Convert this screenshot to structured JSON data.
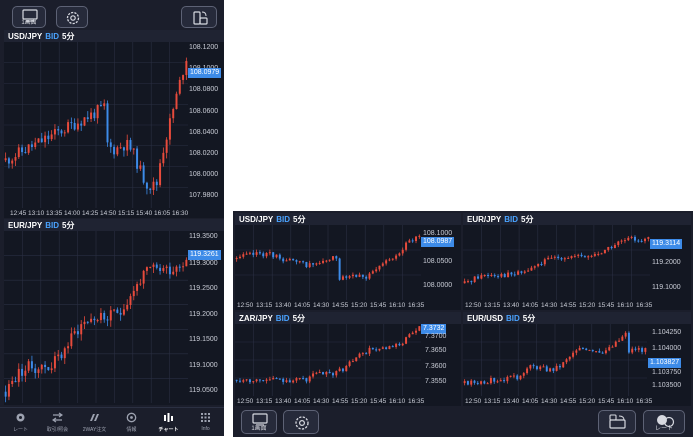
{
  "colors": {
    "up": "#e84b3c",
    "down": "#3d8be8",
    "background": "#131722",
    "accent": "#3d8be8"
  },
  "phone": {
    "toolbar": {
      "screen_button_label": "1画面",
      "settings_icon": "gear-icon",
      "rotate_icon": "rotate-icon"
    },
    "charts": [
      {
        "pair": "USD/JPY",
        "price_type": "BID",
        "interval": "5分",
        "y_ticks": [
          "108.1200",
          "108.1000",
          "108.0800",
          "108.0600",
          "108.0400",
          "108.0200",
          "108.0000",
          "107.9800"
        ],
        "current_price": "108.0979",
        "x_ticks": [
          "12:45",
          "13:10",
          "13:35",
          "14:00",
          "14:25",
          "14:50",
          "15:15",
          "15:40",
          "16:05",
          "16:30"
        ]
      },
      {
        "pair": "EUR/JPY",
        "price_type": "BID",
        "interval": "5分",
        "y_ticks": [
          "119.3500",
          "119.3000",
          "119.2500",
          "119.2000",
          "119.1500",
          "119.1000",
          "119.0500"
        ],
        "current_price": "119.3261",
        "x_ticks": []
      }
    ],
    "nav": [
      {
        "label": "レート",
        "icon": "rate-icon",
        "active": false
      },
      {
        "label": "取引/照会",
        "icon": "trade-icon",
        "active": false
      },
      {
        "label": "2WAY注文",
        "icon": "two-way-order-icon",
        "active": false
      },
      {
        "label": "情報",
        "icon": "info-icon",
        "active": false
      },
      {
        "label": "チャート",
        "icon": "chart-icon",
        "active": true
      },
      {
        "label": "Info",
        "icon": "grid-icon",
        "active": false
      }
    ]
  },
  "tablet": {
    "charts": [
      {
        "pair": "USD/JPY",
        "price_type": "BID",
        "interval": "5分",
        "y_ticks": [
          "108.1000",
          "108.0500",
          "108.0000"
        ],
        "current_price": "108.0987",
        "x_ticks": [
          "12:50",
          "13:15",
          "13:40",
          "14:05",
          "14:30",
          "14:55",
          "15:20",
          "15:45",
          "16:10",
          "16:35"
        ]
      },
      {
        "pair": "EUR/JPY",
        "price_type": "BID",
        "interval": "5分",
        "y_ticks": [
          "119.2000",
          "119.1000"
        ],
        "current_price": "119.3114",
        "x_ticks": [
          "12:50",
          "13:15",
          "13:40",
          "14:05",
          "14:30",
          "14:55",
          "15:20",
          "15:45",
          "16:10",
          "16:35"
        ]
      },
      {
        "pair": "ZAR/JPY",
        "price_type": "BID",
        "interval": "5分",
        "y_ticks": [
          "7.3700",
          "7.3650",
          "7.3600",
          "7.3550"
        ],
        "current_price": "7.3732",
        "x_ticks": [
          "12:50",
          "13:15",
          "13:40",
          "14:05",
          "14:30",
          "14:55",
          "15:20",
          "15:45",
          "16:10",
          "16:35"
        ]
      },
      {
        "pair": "EUR/USD",
        "price_type": "BID",
        "interval": "5分",
        "y_ticks": [
          "1.104250",
          "1.104000",
          "1.103750",
          "1.103500"
        ],
        "current_price": "1.103827",
        "x_ticks": [
          "12:50",
          "13:15",
          "13:40",
          "14:05",
          "14:30",
          "14:55",
          "15:20",
          "15:45",
          "16:10",
          "16:35"
        ]
      }
    ],
    "toolbar": {
      "screen_button_label": "1画面",
      "settings_icon": "gear-icon",
      "rotate_icon": "rotate-icon",
      "rate_button_label": "レート"
    }
  }
}
